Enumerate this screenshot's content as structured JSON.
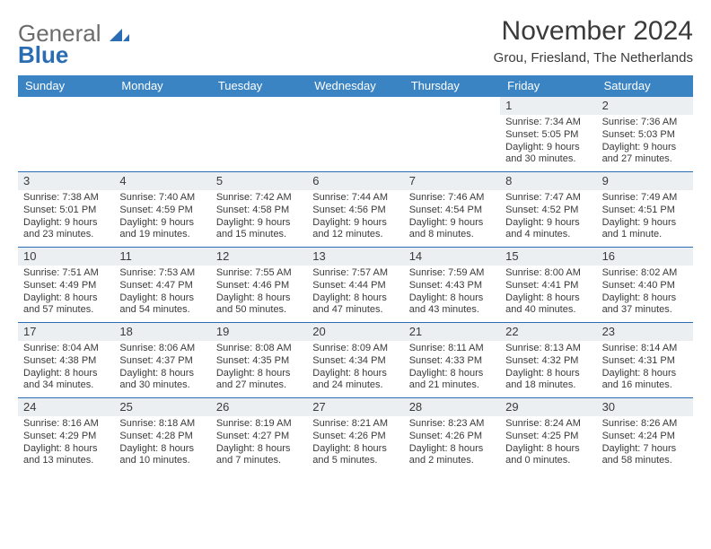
{
  "logo": {
    "general": "General",
    "blue": "Blue"
  },
  "title": "November 2024",
  "subtitle": "Grou, Friesland, The Netherlands",
  "colors": {
    "header_bg": "#3b84c4",
    "header_text": "#ffffff",
    "daynum_bg": "#eceff1",
    "week_divider": "#2a6db3",
    "text": "#3a3a3a",
    "logo_blue": "#2a6db3",
    "logo_gray": "#6c6c6c"
  },
  "day_headers": [
    "Sunday",
    "Monday",
    "Tuesday",
    "Wednesday",
    "Thursday",
    "Friday",
    "Saturday"
  ],
  "weeks": [
    [
      {
        "n": "",
        "sunrise": "",
        "sunset": "",
        "daylight": ""
      },
      {
        "n": "",
        "sunrise": "",
        "sunset": "",
        "daylight": ""
      },
      {
        "n": "",
        "sunrise": "",
        "sunset": "",
        "daylight": ""
      },
      {
        "n": "",
        "sunrise": "",
        "sunset": "",
        "daylight": ""
      },
      {
        "n": "",
        "sunrise": "",
        "sunset": "",
        "daylight": ""
      },
      {
        "n": "1",
        "sunrise": "Sunrise: 7:34 AM",
        "sunset": "Sunset: 5:05 PM",
        "daylight": "Daylight: 9 hours and 30 minutes."
      },
      {
        "n": "2",
        "sunrise": "Sunrise: 7:36 AM",
        "sunset": "Sunset: 5:03 PM",
        "daylight": "Daylight: 9 hours and 27 minutes."
      }
    ],
    [
      {
        "n": "3",
        "sunrise": "Sunrise: 7:38 AM",
        "sunset": "Sunset: 5:01 PM",
        "daylight": "Daylight: 9 hours and 23 minutes."
      },
      {
        "n": "4",
        "sunrise": "Sunrise: 7:40 AM",
        "sunset": "Sunset: 4:59 PM",
        "daylight": "Daylight: 9 hours and 19 minutes."
      },
      {
        "n": "5",
        "sunrise": "Sunrise: 7:42 AM",
        "sunset": "Sunset: 4:58 PM",
        "daylight": "Daylight: 9 hours and 15 minutes."
      },
      {
        "n": "6",
        "sunrise": "Sunrise: 7:44 AM",
        "sunset": "Sunset: 4:56 PM",
        "daylight": "Daylight: 9 hours and 12 minutes."
      },
      {
        "n": "7",
        "sunrise": "Sunrise: 7:46 AM",
        "sunset": "Sunset: 4:54 PM",
        "daylight": "Daylight: 9 hours and 8 minutes."
      },
      {
        "n": "8",
        "sunrise": "Sunrise: 7:47 AM",
        "sunset": "Sunset: 4:52 PM",
        "daylight": "Daylight: 9 hours and 4 minutes."
      },
      {
        "n": "9",
        "sunrise": "Sunrise: 7:49 AM",
        "sunset": "Sunset: 4:51 PM",
        "daylight": "Daylight: 9 hours and 1 minute."
      }
    ],
    [
      {
        "n": "10",
        "sunrise": "Sunrise: 7:51 AM",
        "sunset": "Sunset: 4:49 PM",
        "daylight": "Daylight: 8 hours and 57 minutes."
      },
      {
        "n": "11",
        "sunrise": "Sunrise: 7:53 AM",
        "sunset": "Sunset: 4:47 PM",
        "daylight": "Daylight: 8 hours and 54 minutes."
      },
      {
        "n": "12",
        "sunrise": "Sunrise: 7:55 AM",
        "sunset": "Sunset: 4:46 PM",
        "daylight": "Daylight: 8 hours and 50 minutes."
      },
      {
        "n": "13",
        "sunrise": "Sunrise: 7:57 AM",
        "sunset": "Sunset: 4:44 PM",
        "daylight": "Daylight: 8 hours and 47 minutes."
      },
      {
        "n": "14",
        "sunrise": "Sunrise: 7:59 AM",
        "sunset": "Sunset: 4:43 PM",
        "daylight": "Daylight: 8 hours and 43 minutes."
      },
      {
        "n": "15",
        "sunrise": "Sunrise: 8:00 AM",
        "sunset": "Sunset: 4:41 PM",
        "daylight": "Daylight: 8 hours and 40 minutes."
      },
      {
        "n": "16",
        "sunrise": "Sunrise: 8:02 AM",
        "sunset": "Sunset: 4:40 PM",
        "daylight": "Daylight: 8 hours and 37 minutes."
      }
    ],
    [
      {
        "n": "17",
        "sunrise": "Sunrise: 8:04 AM",
        "sunset": "Sunset: 4:38 PM",
        "daylight": "Daylight: 8 hours and 34 minutes."
      },
      {
        "n": "18",
        "sunrise": "Sunrise: 8:06 AM",
        "sunset": "Sunset: 4:37 PM",
        "daylight": "Daylight: 8 hours and 30 minutes."
      },
      {
        "n": "19",
        "sunrise": "Sunrise: 8:08 AM",
        "sunset": "Sunset: 4:35 PM",
        "daylight": "Daylight: 8 hours and 27 minutes."
      },
      {
        "n": "20",
        "sunrise": "Sunrise: 8:09 AM",
        "sunset": "Sunset: 4:34 PM",
        "daylight": "Daylight: 8 hours and 24 minutes."
      },
      {
        "n": "21",
        "sunrise": "Sunrise: 8:11 AM",
        "sunset": "Sunset: 4:33 PM",
        "daylight": "Daylight: 8 hours and 21 minutes."
      },
      {
        "n": "22",
        "sunrise": "Sunrise: 8:13 AM",
        "sunset": "Sunset: 4:32 PM",
        "daylight": "Daylight: 8 hours and 18 minutes."
      },
      {
        "n": "23",
        "sunrise": "Sunrise: 8:14 AM",
        "sunset": "Sunset: 4:31 PM",
        "daylight": "Daylight: 8 hours and 16 minutes."
      }
    ],
    [
      {
        "n": "24",
        "sunrise": "Sunrise: 8:16 AM",
        "sunset": "Sunset: 4:29 PM",
        "daylight": "Daylight: 8 hours and 13 minutes."
      },
      {
        "n": "25",
        "sunrise": "Sunrise: 8:18 AM",
        "sunset": "Sunset: 4:28 PM",
        "daylight": "Daylight: 8 hours and 10 minutes."
      },
      {
        "n": "26",
        "sunrise": "Sunrise: 8:19 AM",
        "sunset": "Sunset: 4:27 PM",
        "daylight": "Daylight: 8 hours and 7 minutes."
      },
      {
        "n": "27",
        "sunrise": "Sunrise: 8:21 AM",
        "sunset": "Sunset: 4:26 PM",
        "daylight": "Daylight: 8 hours and 5 minutes."
      },
      {
        "n": "28",
        "sunrise": "Sunrise: 8:23 AM",
        "sunset": "Sunset: 4:26 PM",
        "daylight": "Daylight: 8 hours and 2 minutes."
      },
      {
        "n": "29",
        "sunrise": "Sunrise: 8:24 AM",
        "sunset": "Sunset: 4:25 PM",
        "daylight": "Daylight: 8 hours and 0 minutes."
      },
      {
        "n": "30",
        "sunrise": "Sunrise: 8:26 AM",
        "sunset": "Sunset: 4:24 PM",
        "daylight": "Daylight: 7 hours and 58 minutes."
      }
    ]
  ]
}
